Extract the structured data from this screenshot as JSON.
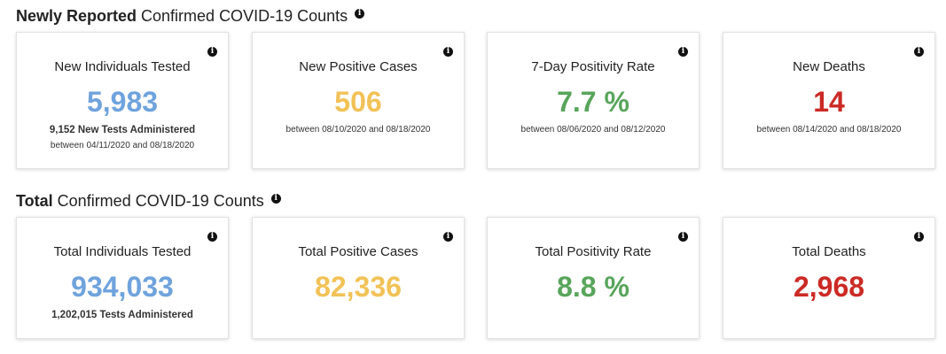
{
  "newly": {
    "title_bold": "Newly Reported",
    "title_rest": "Confirmed COVID-19 Counts",
    "cards": [
      {
        "title": "New Individuals Tested",
        "value": "5,983",
        "sub1": "9,152 New Tests Administered",
        "sub2": "between 04/11/2020 and 08/18/2020"
      },
      {
        "title": "New Positive Cases",
        "value": "506",
        "sub": "between 08/10/2020 and 08/18/2020"
      },
      {
        "title": "7-Day Positivity Rate",
        "value": "7.7 %",
        "sub": "between 08/06/2020 and 08/12/2020"
      },
      {
        "title": "New Deaths",
        "value": "14",
        "sub": "between 08/14/2020 and 08/18/2020"
      }
    ]
  },
  "total": {
    "title_bold": "Total",
    "title_rest": "Confirmed COVID-19 Counts",
    "cards": [
      {
        "title": "Total Individuals Tested",
        "value": "934,033",
        "sub1": "1,202,015 Tests Administered"
      },
      {
        "title": "Total Positive Cases",
        "value": "82,336"
      },
      {
        "title": "Total Positivity Rate",
        "value": "8.8 %"
      },
      {
        "title": "Total Deaths",
        "value": "2,968"
      }
    ]
  },
  "icons": {
    "info": "info-icon"
  },
  "colors": {
    "blue": "#6fa3dd",
    "yellow": "#f2c257",
    "green": "#58a55c",
    "red": "#cc2a25"
  }
}
